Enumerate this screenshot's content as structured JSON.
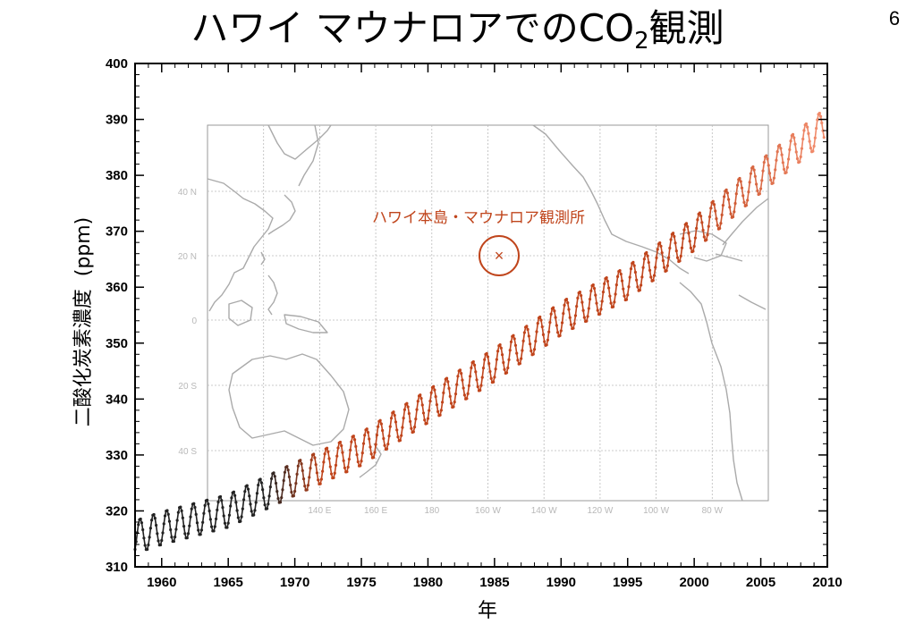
{
  "slide": {
    "title_main": "ハワイ マウナロアでのCO",
    "title_sub": "2",
    "title_tail": "観測",
    "page_number": "6"
  },
  "colors": {
    "series_early": "#222222",
    "series_mid": "#c0451c",
    "series_late": "#f08a6a",
    "map_line": "#b0b0b0",
    "map_label": "#b8b8b8",
    "station": "#c0451c"
  },
  "map_inset": {
    "station_label": "ハワイ本島・マウナロア観測所",
    "lat_labels": [
      "40 N",
      "20 N",
      "0",
      "20 S",
      "40 S"
    ],
    "lon_labels": [
      "140 E",
      "160 E",
      "180",
      "160 W",
      "140 W",
      "120 W",
      "100 W",
      "80 W"
    ],
    "station_marker": "×"
  },
  "chart_data": {
    "type": "line",
    "xlabel": "年",
    "ylabel": "二酸化炭素濃度  (ppm)",
    "xlim": [
      1958,
      2010
    ],
    "ylim": [
      310,
      400
    ],
    "x_ticks": [
      1960,
      1965,
      1970,
      1975,
      1980,
      1985,
      1990,
      1995,
      2000,
      2005,
      2010
    ],
    "y_ticks": [
      310,
      320,
      330,
      340,
      350,
      360,
      370,
      380,
      390,
      400
    ],
    "grid": false,
    "series": [
      {
        "seasonal_amplitude_ppm": 6,
        "annual_values": [
          {
            "x": 1958,
            "y": 315.3
          },
          {
            "x": 1960,
            "y": 316.9
          },
          {
            "x": 1965,
            "y": 320.0
          },
          {
            "x": 1970,
            "y": 325.7
          },
          {
            "x": 1975,
            "y": 331.1
          },
          {
            "x": 1980,
            "y": 338.7
          },
          {
            "x": 1985,
            "y": 346.1
          },
          {
            "x": 1990,
            "y": 354.4
          },
          {
            "x": 1995,
            "y": 360.8
          },
          {
            "x": 2000,
            "y": 369.5
          },
          {
            "x": 2005,
            "y": 379.8
          },
          {
            "x": 2009,
            "y": 387.4
          }
        ]
      }
    ]
  }
}
